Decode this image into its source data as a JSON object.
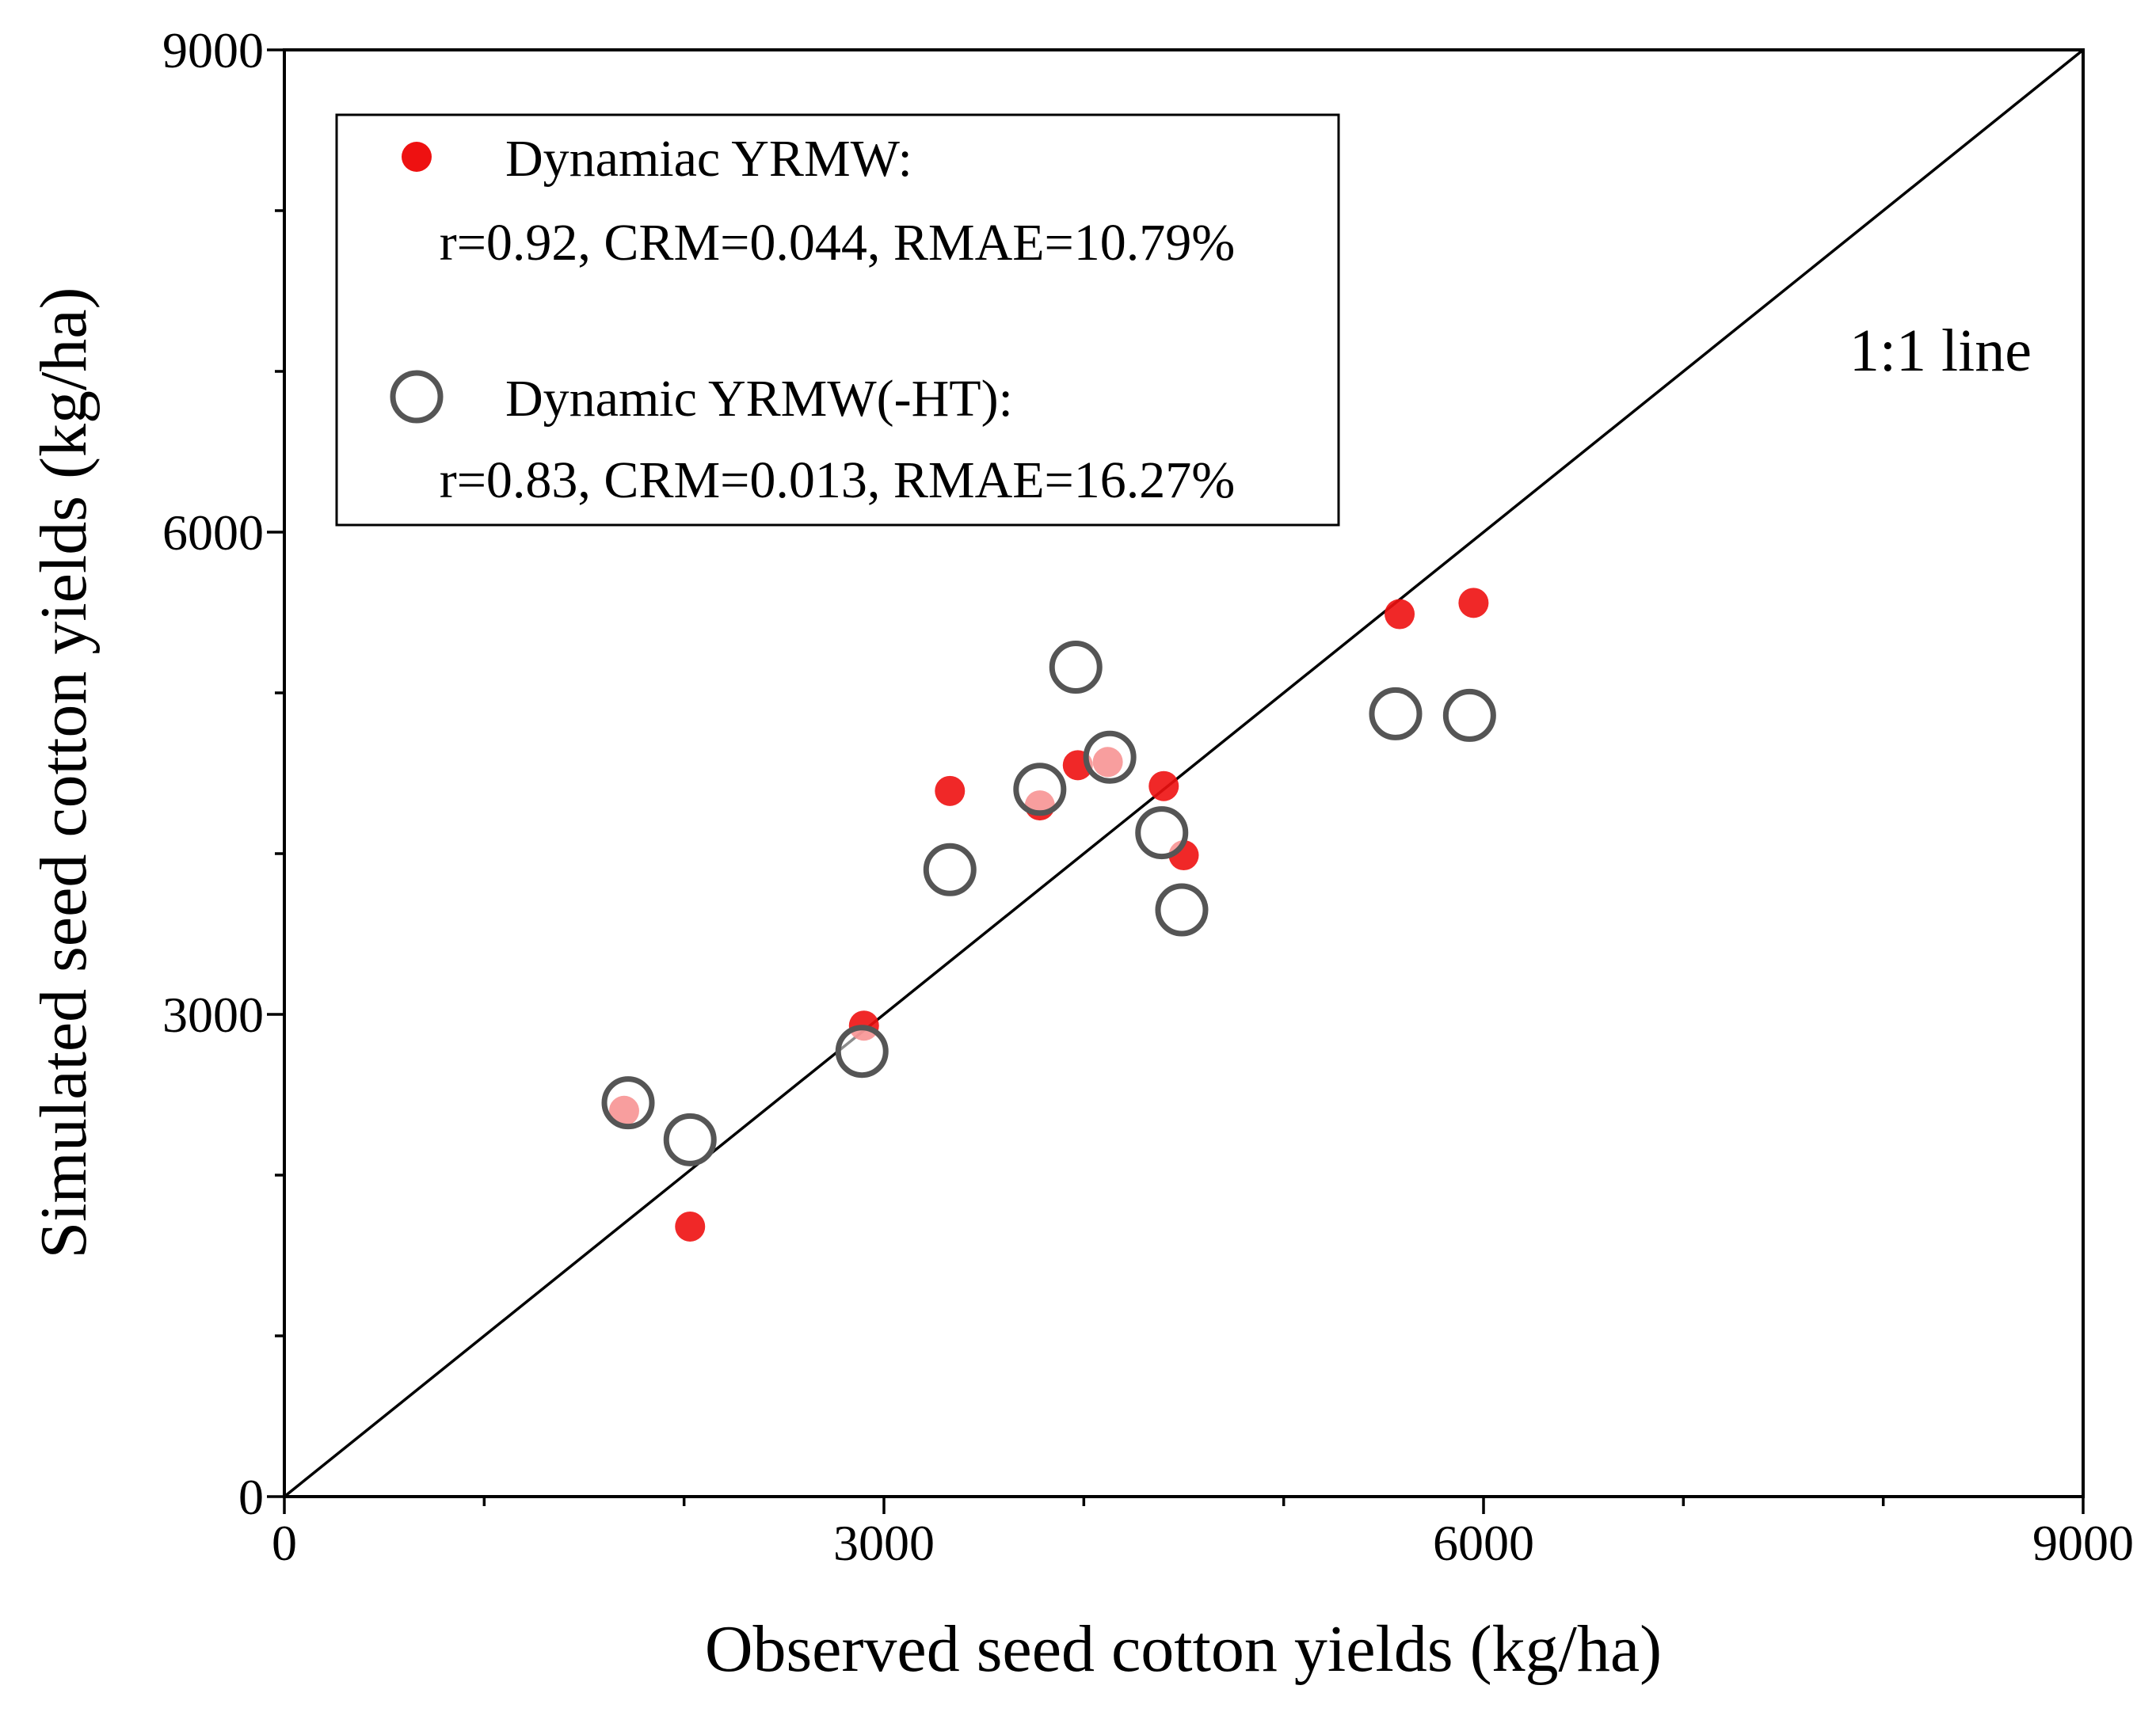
{
  "chart_data": {
    "type": "scatter",
    "xlabel": "Observed seed cotton yields (kg/ha)",
    "ylabel": "Simulated seed cotton yields (kg/ha)",
    "xlim": [
      0,
      9000
    ],
    "ylim": [
      0,
      9000
    ],
    "xticks": [
      "0",
      "3000",
      "6000",
      "9000"
    ],
    "yticks": [
      "0",
      "3000",
      "6000",
      "9000"
    ],
    "minor_tick_step": 1000,
    "grid": false,
    "legend_position": "top-left",
    "reference_line": {
      "label": "1:1 line",
      "from": [
        0,
        0
      ],
      "to": [
        9000,
        9000
      ]
    },
    "series": [
      {
        "name": "Dynamiac YRMW:",
        "stats": "r=0.92, CRM=0.044, RMAE=10.79%",
        "marker": "filled-circle",
        "color": "#ee1111",
        "points": [
          {
            "x": 1700,
            "y": 2400
          },
          {
            "x": 2030,
            "y": 1680
          },
          {
            "x": 2900,
            "y": 2930
          },
          {
            "x": 3330,
            "y": 4390
          },
          {
            "x": 3780,
            "y": 4300
          },
          {
            "x": 3970,
            "y": 4550
          },
          {
            "x": 4120,
            "y": 4570
          },
          {
            "x": 4400,
            "y": 4420
          },
          {
            "x": 4500,
            "y": 3990
          },
          {
            "x": 5580,
            "y": 5490
          },
          {
            "x": 5950,
            "y": 5560
          }
        ]
      },
      {
        "name": "Dynamic YRMW(-HT):",
        "stats": "r=0.83, CRM=0.013, RMAE=16.27%",
        "marker": "open-circle",
        "color": "#555555",
        "points": [
          {
            "x": 1720,
            "y": 2450
          },
          {
            "x": 2030,
            "y": 2220
          },
          {
            "x": 2890,
            "y": 2770
          },
          {
            "x": 3330,
            "y": 3900
          },
          {
            "x": 3780,
            "y": 4400
          },
          {
            "x": 3960,
            "y": 5160
          },
          {
            "x": 4130,
            "y": 4600
          },
          {
            "x": 4390,
            "y": 4130
          },
          {
            "x": 4490,
            "y": 3650
          },
          {
            "x": 5560,
            "y": 4870
          },
          {
            "x": 5930,
            "y": 4860
          }
        ]
      }
    ]
  }
}
